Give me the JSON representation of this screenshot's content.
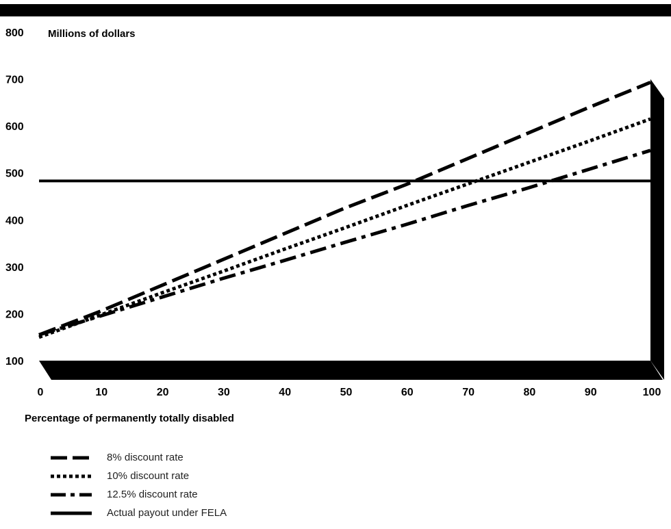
{
  "chart_data": {
    "type": "line",
    "x": [
      0,
      100
    ],
    "xticks": [
      0,
      10,
      20,
      30,
      40,
      50,
      60,
      70,
      80,
      90,
      100
    ],
    "yticks": [
      100,
      200,
      300,
      400,
      500,
      600,
      700,
      800
    ],
    "xlim": [
      0,
      100
    ],
    "ylim": [
      100,
      800
    ],
    "ylabel": "Millions of dollars",
    "xlabel": "Percentage of permanently totally disabled",
    "series": [
      {
        "name": "8% discount rate",
        "style": "dash",
        "x": [
          0,
          10,
          20,
          30,
          40,
          50,
          60,
          70,
          80,
          90,
          100
        ],
        "values": [
          155,
          205,
          260,
          315,
          370,
          425,
          475,
          530,
          585,
          640,
          693
        ]
      },
      {
        "name": "10% discount rate",
        "style": "dot",
        "x": [
          0,
          10,
          20,
          30,
          40,
          50,
          60,
          70,
          80,
          90,
          100
        ],
        "values": [
          150,
          197,
          244,
          290,
          337,
          383,
          430,
          476,
          522,
          568,
          615
        ]
      },
      {
        "name": "12.5% discount rate",
        "style": "dashdot",
        "x": [
          0,
          10,
          20,
          30,
          40,
          50,
          60,
          70,
          80,
          90,
          100
        ],
        "values": [
          155,
          195,
          235,
          275,
          313,
          352,
          390,
          430,
          468,
          508,
          548
        ]
      },
      {
        "name": "Actual payout under FELA",
        "style": "solid",
        "x": [
          0,
          100
        ],
        "values": [
          483,
          483
        ]
      }
    ],
    "legend_position": "bottom-left",
    "grid": false,
    "colors": {
      "line": "#000000",
      "background": "#ffffff"
    }
  }
}
